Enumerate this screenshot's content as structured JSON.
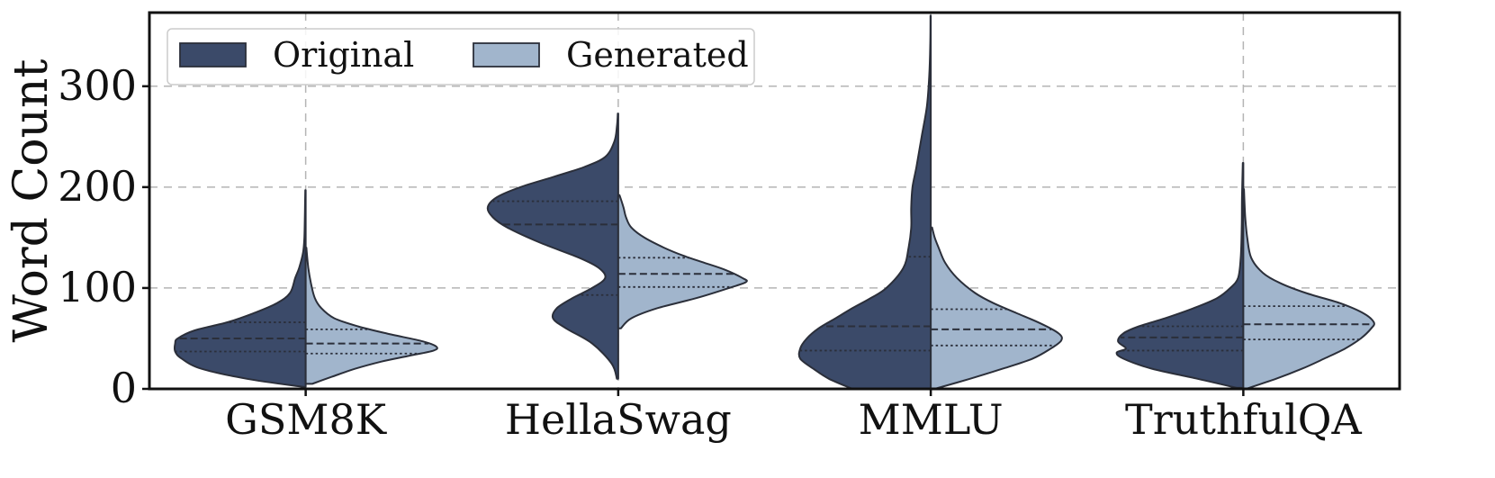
{
  "chart_data": {
    "type": "violin",
    "ylabel": "Word Count",
    "xlabel": "",
    "ylim": [
      0,
      373
    ],
    "yticks": [
      0,
      100,
      200,
      300
    ],
    "grid": "dashed",
    "legend_position": "top-left",
    "categories": [
      "GSM8K",
      "HellaSwag",
      "MMLU",
      "TruthfulQA"
    ],
    "series": [
      {
        "name": "Original",
        "color": "#3b4a69",
        "side": "left",
        "violins": [
          {
            "ymin": 2,
            "ymax": 197,
            "quartiles": [
              37,
              50,
              66
            ],
            "density": [
              [
                2,
                0.02
              ],
              [
                10,
                0.45
              ],
              [
                20,
                0.8
              ],
              [
                30,
                0.95
              ],
              [
                37,
                1.0
              ],
              [
                45,
                1.0
              ],
              [
                50,
                0.98
              ],
              [
                58,
                0.85
              ],
              [
                66,
                0.6
              ],
              [
                75,
                0.4
              ],
              [
                85,
                0.22
              ],
              [
                95,
                0.12
              ],
              [
                110,
                0.08
              ],
              [
                120,
                0.05
              ],
              [
                135,
                0.02
              ],
              [
                150,
                0.01
              ],
              [
                175,
                0.006
              ],
              [
                197,
                0.003
              ]
            ]
          },
          {
            "ymin": 10,
            "ymax": 273,
            "quartiles": [
              93,
              163,
              186
            ],
            "density": [
              [
                10,
                0.01
              ],
              [
                25,
                0.05
              ],
              [
                45,
                0.2
              ],
              [
                60,
                0.4
              ],
              [
                70,
                0.5
              ],
              [
                80,
                0.47
              ],
              [
                90,
                0.35
              ],
              [
                100,
                0.2
              ],
              [
                110,
                0.1
              ],
              [
                120,
                0.15
              ],
              [
                130,
                0.3
              ],
              [
                145,
                0.6
              ],
              [
                160,
                0.85
              ],
              [
                170,
                0.96
              ],
              [
                180,
                1.0
              ],
              [
                190,
                0.93
              ],
              [
                200,
                0.75
              ],
              [
                210,
                0.5
              ],
              [
                220,
                0.26
              ],
              [
                230,
                0.1
              ],
              [
                245,
                0.03
              ],
              [
                260,
                0.01
              ],
              [
                273,
                0.003
              ]
            ]
          },
          {
            "ymin": 0,
            "ymax": 370,
            "quartiles": [
              38,
              62,
              131
            ],
            "density": [
              [
                0,
                0.6
              ],
              [
                10,
                0.78
              ],
              [
                20,
                0.9
              ],
              [
                30,
                1.0
              ],
              [
                40,
                1.0
              ],
              [
                50,
                0.95
              ],
              [
                60,
                0.86
              ],
              [
                70,
                0.73
              ],
              [
                80,
                0.6
              ],
              [
                90,
                0.46
              ],
              [
                100,
                0.34
              ],
              [
                120,
                0.21
              ],
              [
                140,
                0.17
              ],
              [
                160,
                0.15
              ],
              [
                180,
                0.15
              ],
              [
                200,
                0.14
              ],
              [
                220,
                0.11
              ],
              [
                250,
                0.07
              ],
              [
                280,
                0.03
              ],
              [
                310,
                0.012
              ],
              [
                340,
                0.004
              ],
              [
                370,
                0.002
              ]
            ]
          },
          {
            "ymin": 1,
            "ymax": 224,
            "quartiles": [
              38,
              51,
              62
            ],
            "density": [
              [
                1,
                0.05
              ],
              [
                10,
                0.35
              ],
              [
                20,
                0.7
              ],
              [
                30,
                0.92
              ],
              [
                36,
                0.97
              ],
              [
                40,
                0.9
              ],
              [
                47,
                0.96
              ],
              [
                55,
                0.92
              ],
              [
                62,
                0.8
              ],
              [
                70,
                0.6
              ],
              [
                80,
                0.38
              ],
              [
                90,
                0.2
              ],
              [
                100,
                0.1
              ],
              [
                110,
                0.04
              ],
              [
                130,
                0.02
              ],
              [
                160,
                0.012
              ],
              [
                190,
                0.01
              ],
              [
                224,
                0.004
              ]
            ]
          }
        ]
      },
      {
        "name": "Generated",
        "color": "#a1b5cc",
        "side": "right",
        "violins": [
          {
            "ymin": 5,
            "ymax": 140,
            "quartiles": [
              35,
              45,
              59
            ],
            "density": [
              [
                5,
                0.05
              ],
              [
                12,
                0.2
              ],
              [
                20,
                0.38
              ],
              [
                27,
                0.58
              ],
              [
                33,
                0.8
              ],
              [
                38,
                0.98
              ],
              [
                42,
                1.0
              ],
              [
                47,
                0.9
              ],
              [
                55,
                0.62
              ],
              [
                62,
                0.4
              ],
              [
                70,
                0.22
              ],
              [
                80,
                0.12
              ],
              [
                90,
                0.07
              ],
              [
                105,
                0.04
              ],
              [
                120,
                0.02
              ],
              [
                140,
                0.005
              ]
            ]
          },
          {
            "ymin": 60,
            "ymax": 192,
            "quartiles": [
              101,
              114,
              130
            ],
            "density": [
              [
                60,
                0.02
              ],
              [
                70,
                0.1
              ],
              [
                80,
                0.3
              ],
              [
                90,
                0.6
              ],
              [
                100,
                0.85
              ],
              [
                106,
                0.98
              ],
              [
                110,
                0.95
              ],
              [
                118,
                0.82
              ],
              [
                125,
                0.66
              ],
              [
                132,
                0.5
              ],
              [
                140,
                0.35
              ],
              [
                150,
                0.2
              ],
              [
                160,
                0.1
              ],
              [
                170,
                0.06
              ],
              [
                180,
                0.04
              ],
              [
                192,
                0.01
              ]
            ]
          },
          {
            "ymin": 0,
            "ymax": 160,
            "quartiles": [
              43,
              59,
              79
            ],
            "density": [
              [
                0,
                0.03
              ],
              [
                10,
                0.3
              ],
              [
                20,
                0.55
              ],
              [
                30,
                0.78
              ],
              [
                40,
                0.92
              ],
              [
                48,
                1.0
              ],
              [
                55,
                0.98
              ],
              [
                65,
                0.84
              ],
              [
                75,
                0.66
              ],
              [
                85,
                0.48
              ],
              [
                95,
                0.34
              ],
              [
                110,
                0.2
              ],
              [
                125,
                0.11
              ],
              [
                140,
                0.06
              ],
              [
                150,
                0.03
              ],
              [
                160,
                0.01
              ]
            ]
          },
          {
            "ymin": 0,
            "ymax": 198,
            "quartiles": [
              49,
              64,
              82
            ],
            "density": [
              [
                0,
                0.02
              ],
              [
                10,
                0.25
              ],
              [
                20,
                0.45
              ],
              [
                30,
                0.62
              ],
              [
                40,
                0.78
              ],
              [
                50,
                0.9
              ],
              [
                60,
                0.98
              ],
              [
                66,
                1.0
              ],
              [
                75,
                0.92
              ],
              [
                85,
                0.74
              ],
              [
                95,
                0.48
              ],
              [
                105,
                0.28
              ],
              [
                115,
                0.15
              ],
              [
                130,
                0.06
              ],
              [
                150,
                0.03
              ],
              [
                170,
                0.015
              ],
              [
                198,
                0.005
              ]
            ]
          }
        ]
      }
    ]
  }
}
